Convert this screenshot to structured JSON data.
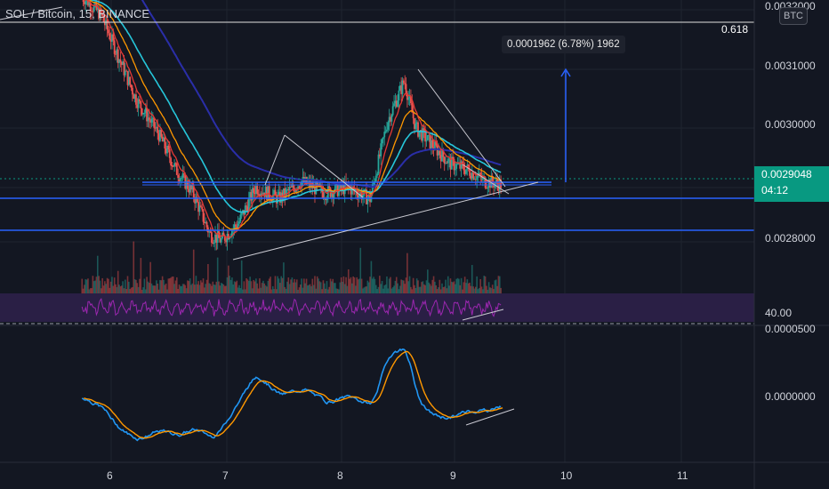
{
  "header": {
    "title": "SOL / Bitcoin, 15, BINANCE",
    "currency_button": "BTC"
  },
  "measure_tool": {
    "label": "0.0001962 (6.78%) 1962"
  },
  "fib_level": {
    "label": "0.618"
  },
  "current_price": {
    "value": "0.0029048",
    "countdown": "04:12"
  },
  "price_axis": {
    "ticks": [
      "0.0032000",
      "0.0031000",
      "0.0030000",
      "0.0028000"
    ]
  },
  "rsi_axis": {
    "tick": "40.00"
  },
  "osc_axis": {
    "ticks": [
      "0.0000500",
      "0.0000000"
    ]
  },
  "time_axis": {
    "ticks": [
      "6",
      "7",
      "8",
      "9",
      "10",
      "11"
    ]
  },
  "colors": {
    "background": "#131722",
    "up": "#26a69a",
    "down": "#ef5350",
    "ema_red": "#e53935",
    "ema_orange": "#ff9800",
    "ema_teal": "#26c6da",
    "ema_navy": "#2a2ea8",
    "blue_line": "#2962ff",
    "rsi": "#9c27b0",
    "osc_blue": "#2196f3",
    "osc_orange": "#ff9800"
  },
  "chart_data": {
    "type": "line",
    "title": "SOL / Bitcoin, 15, BINANCE",
    "x_ticks": [
      "6",
      "7",
      "8",
      "9",
      "10",
      "11"
    ],
    "price": {
      "x": [
        5.8,
        5.95,
        6.1,
        6.25,
        6.45,
        6.6,
        6.75,
        6.9,
        7.0,
        7.15,
        7.3,
        7.5,
        7.7,
        7.9,
        8.1,
        8.3,
        8.45,
        8.6,
        8.7,
        8.85,
        9.0,
        9.15,
        9.3,
        9.45
      ],
      "close": [
        0.00322,
        0.00319,
        0.00312,
        0.00305,
        0.00299,
        0.00293,
        0.00289,
        0.00282,
        0.00281,
        0.00284,
        0.0029,
        0.00288,
        0.00291,
        0.00289,
        0.0029,
        0.00288,
        0.00301,
        0.00308,
        0.003,
        0.00297,
        0.00294,
        0.00293,
        0.00291,
        0.0029048
      ]
    },
    "horizontal_levels": [
      0.003184,
      0.0029,
      0.002868,
      0.002819
    ],
    "measure": {
      "from": 0.0029048,
      "delta": 0.0001962,
      "percent": 6.78,
      "ticks": 1962
    },
    "rsi_level": 40.0,
    "y_ticks": [
      "0.0032000",
      "0.0031000",
      "0.0030000",
      "0.0028000"
    ],
    "ylim": [
      0.00275,
      0.00322
    ]
  }
}
